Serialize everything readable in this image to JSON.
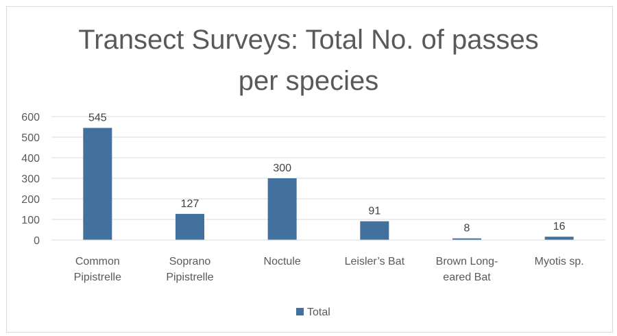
{
  "chart_data": {
    "type": "bar",
    "title": "Transect Surveys: Total No. of passes per species",
    "title_lines": [
      "Transect Surveys: Total No. of passes",
      "per species"
    ],
    "categories": [
      [
        "Common",
        "Pipistrelle"
      ],
      [
        "Soprano",
        "Pipistrelle"
      ],
      [
        "Noctule"
      ],
      [
        "Leisler’s Bat"
      ],
      [
        "Brown Long-",
        "eared Bat"
      ],
      [
        "Myotis sp."
      ]
    ],
    "series": [
      {
        "name": "Total",
        "values": [
          545,
          127,
          300,
          91,
          8,
          16
        ],
        "color": "#4472c4"
      }
    ],
    "ylim": [
      0,
      600
    ],
    "yticks": [
      0,
      100,
      200,
      300,
      400,
      500,
      600
    ],
    "grid": true,
    "legend": "bottom",
    "colors": {
      "bar": "#41719c",
      "grid": "#d9d9d9",
      "text": "#595959"
    }
  }
}
